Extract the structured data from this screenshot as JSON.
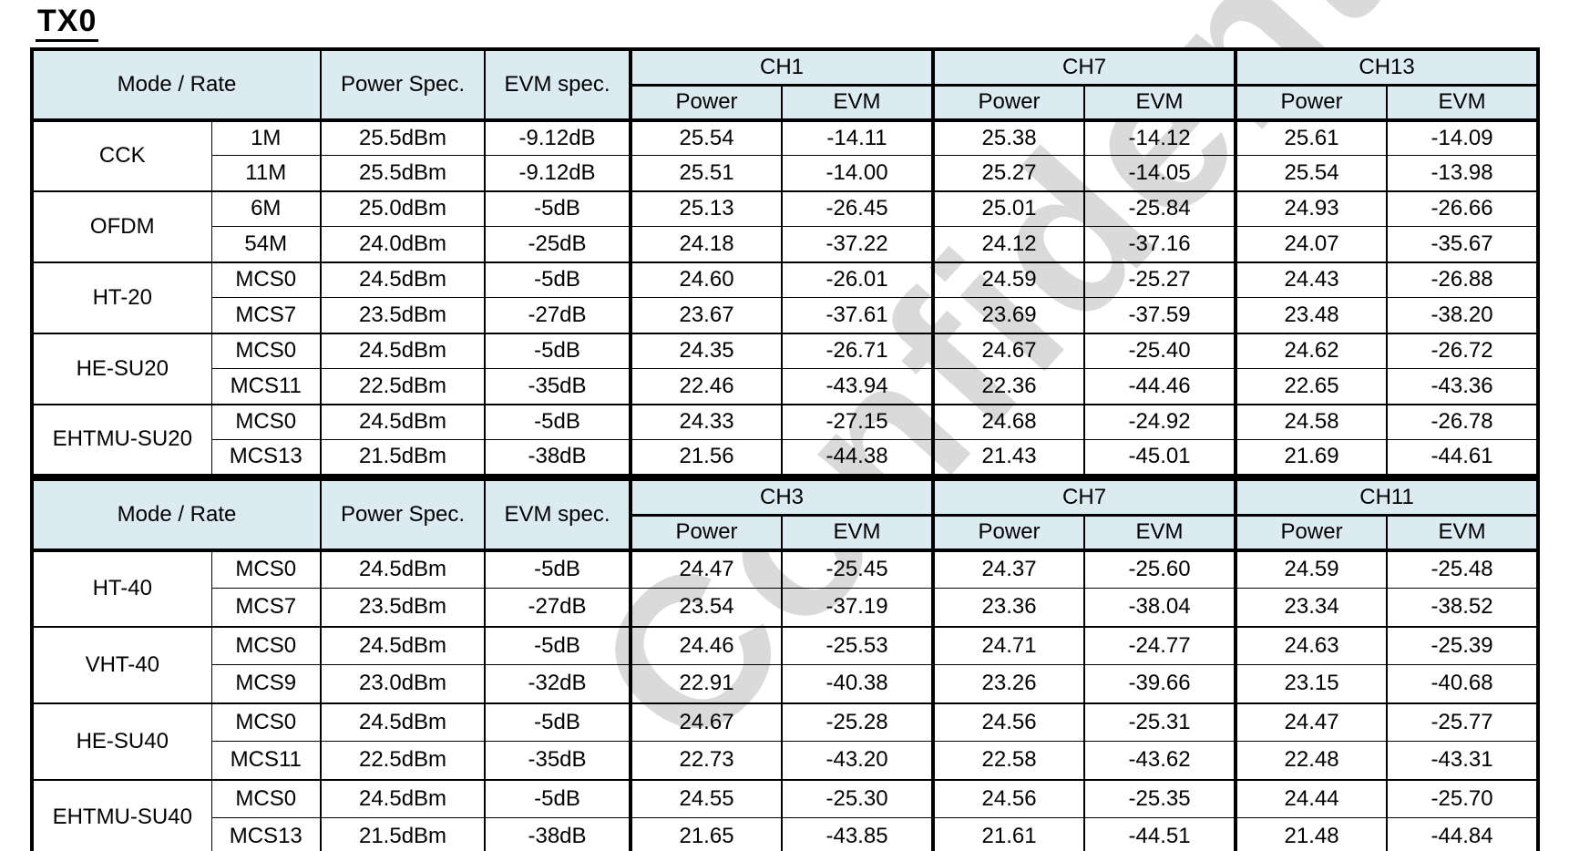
{
  "title": "TX0",
  "watermark_text": "Confidential",
  "colors": {
    "header_bg": "#dcebf2",
    "border": "#000000",
    "watermark": "#dadada",
    "text": "#000000"
  },
  "tables": [
    {
      "header": {
        "mode_rate": "Mode / Rate",
        "power_spec": "Power Spec.",
        "evm_spec": "EVM spec.",
        "channels": [
          "CH1",
          "CH7",
          "CH13"
        ],
        "sub": [
          "Power",
          "EVM"
        ]
      },
      "groups": [
        {
          "mode": "CCK",
          "rows": [
            {
              "rate": "1M",
              "power_spec": "25.5dBm",
              "evm_spec": "-9.12dB",
              "values": [
                "25.54",
                "-14.11",
                "25.38",
                "-14.12",
                "25.61",
                "-14.09"
              ]
            },
            {
              "rate": "11M",
              "power_spec": "25.5dBm",
              "evm_spec": "-9.12dB",
              "values": [
                "25.51",
                "-14.00",
                "25.27",
                "-14.05",
                "25.54",
                "-13.98"
              ]
            }
          ]
        },
        {
          "mode": "OFDM",
          "rows": [
            {
              "rate": "6M",
              "power_spec": "25.0dBm",
              "evm_spec": "-5dB",
              "values": [
                "25.13",
                "-26.45",
                "25.01",
                "-25.84",
                "24.93",
                "-26.66"
              ]
            },
            {
              "rate": "54M",
              "power_spec": "24.0dBm",
              "evm_spec": "-25dB",
              "values": [
                "24.18",
                "-37.22",
                "24.12",
                "-37.16",
                "24.07",
                "-35.67"
              ]
            }
          ]
        },
        {
          "mode": "HT-20",
          "rows": [
            {
              "rate": "MCS0",
              "power_spec": "24.5dBm",
              "evm_spec": "-5dB",
              "values": [
                "24.60",
                "-26.01",
                "24.59",
                "-25.27",
                "24.43",
                "-26.88"
              ]
            },
            {
              "rate": "MCS7",
              "power_spec": "23.5dBm",
              "evm_spec": "-27dB",
              "values": [
                "23.67",
                "-37.61",
                "23.69",
                "-37.59",
                "23.48",
                "-38.20"
              ]
            }
          ]
        },
        {
          "mode": "HE-SU20",
          "rows": [
            {
              "rate": "MCS0",
              "power_spec": "24.5dBm",
              "evm_spec": "-5dB",
              "values": [
                "24.35",
                "-26.71",
                "24.67",
                "-25.40",
                "24.62",
                "-26.72"
              ]
            },
            {
              "rate": "MCS11",
              "power_spec": "22.5dBm",
              "evm_spec": "-35dB",
              "values": [
                "22.46",
                "-43.94",
                "22.36",
                "-44.46",
                "22.65",
                "-43.36"
              ]
            }
          ]
        },
        {
          "mode": "EHTMU-SU20",
          "rows": [
            {
              "rate": "MCS0",
              "power_spec": "24.5dBm",
              "evm_spec": "-5dB",
              "values": [
                "24.33",
                "-27.15",
                "24.68",
                "-24.92",
                "24.58",
                "-26.78"
              ]
            },
            {
              "rate": "MCS13",
              "power_spec": "21.5dBm",
              "evm_spec": "-38dB",
              "values": [
                "21.56",
                "-44.38",
                "21.43",
                "-45.01",
                "21.69",
                "-44.61"
              ]
            }
          ]
        }
      ]
    },
    {
      "header": {
        "mode_rate": "Mode / Rate",
        "power_spec": "Power Spec.",
        "evm_spec": "EVM spec.",
        "channels": [
          "CH3",
          "CH7",
          "CH11"
        ],
        "sub": [
          "Power",
          "EVM"
        ]
      },
      "groups": [
        {
          "mode": "HT-40",
          "rows": [
            {
              "rate": "MCS0",
              "power_spec": "24.5dBm",
              "evm_spec": "-5dB",
              "values": [
                "24.47",
                "-25.45",
                "24.37",
                "-25.60",
                "24.59",
                "-25.48"
              ]
            },
            {
              "rate": "MCS7",
              "power_spec": "23.5dBm",
              "evm_spec": "-27dB",
              "values": [
                "23.54",
                "-37.19",
                "23.36",
                "-38.04",
                "23.34",
                "-38.52"
              ]
            }
          ]
        },
        {
          "mode": "VHT-40",
          "rows": [
            {
              "rate": "MCS0",
              "power_spec": "24.5dBm",
              "evm_spec": "-5dB",
              "values": [
                "24.46",
                "-25.53",
                "24.71",
                "-24.77",
                "24.63",
                "-25.39"
              ]
            },
            {
              "rate": "MCS9",
              "power_spec": "23.0dBm",
              "evm_spec": "-32dB",
              "values": [
                "22.91",
                "-40.38",
                "23.26",
                "-39.66",
                "23.15",
                "-40.68"
              ]
            }
          ]
        },
        {
          "mode": "HE-SU40",
          "rows": [
            {
              "rate": "MCS0",
              "power_spec": "24.5dBm",
              "evm_spec": "-5dB",
              "values": [
                "24.67",
                "-25.28",
                "24.56",
                "-25.31",
                "24.47",
                "-25.77"
              ]
            },
            {
              "rate": "MCS11",
              "power_spec": "22.5dBm",
              "evm_spec": "-35dB",
              "values": [
                "22.73",
                "-43.20",
                "22.58",
                "-43.62",
                "22.48",
                "-43.31"
              ]
            }
          ]
        },
        {
          "mode": "EHTMU-SU40",
          "rows": [
            {
              "rate": "MCS0",
              "power_spec": "24.5dBm",
              "evm_spec": "-5dB",
              "values": [
                "24.55",
                "-25.30",
                "24.56",
                "-25.35",
                "24.44",
                "-25.70"
              ]
            },
            {
              "rate": "MCS13",
              "power_spec": "21.5dBm",
              "evm_spec": "-38dB",
              "values": [
                "21.65",
                "-43.85",
                "21.61",
                "-44.51",
                "21.48",
                "-44.84"
              ]
            }
          ]
        }
      ]
    }
  ]
}
